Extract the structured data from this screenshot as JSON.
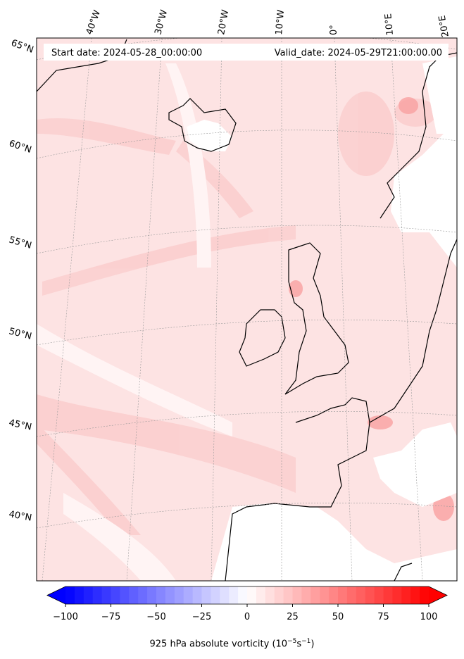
{
  "map": {
    "start_date": "Start date: 2024-05-28_00:00:00",
    "valid_date": "Valid_date: 2024-05-29T21:00:00.00",
    "lon_labels": [
      "40°W",
      "30°W",
      "20°W",
      "10°W",
      "0°",
      "10°E",
      "20°E"
    ],
    "lat_labels": [
      "65°N",
      "60°N",
      "55°N",
      "50°N",
      "45°N",
      "40°N"
    ],
    "field_colors": {
      "land_white": "#ffffff",
      "base_pink": "#fde3e3",
      "strong_red": "#f88a8a",
      "coast": "#000000"
    }
  },
  "colorbar": {
    "min": -100,
    "max": 100,
    "step": 5,
    "ticks": [
      "−100",
      "−75",
      "−50",
      "−25",
      "0",
      "25",
      "50",
      "75",
      "100"
    ],
    "tick_values": [
      -100,
      -75,
      -50,
      -25,
      0,
      25,
      50,
      75,
      100
    ],
    "low_color": "#0000ff",
    "mid_color": "#ffffff",
    "high_color": "#ff0000",
    "label_prefix": "925 hPa absolute vorticity (10",
    "label_exp1": "−5",
    "label_mid": "s",
    "label_exp2": "−1",
    "label_suffix": ")"
  }
}
